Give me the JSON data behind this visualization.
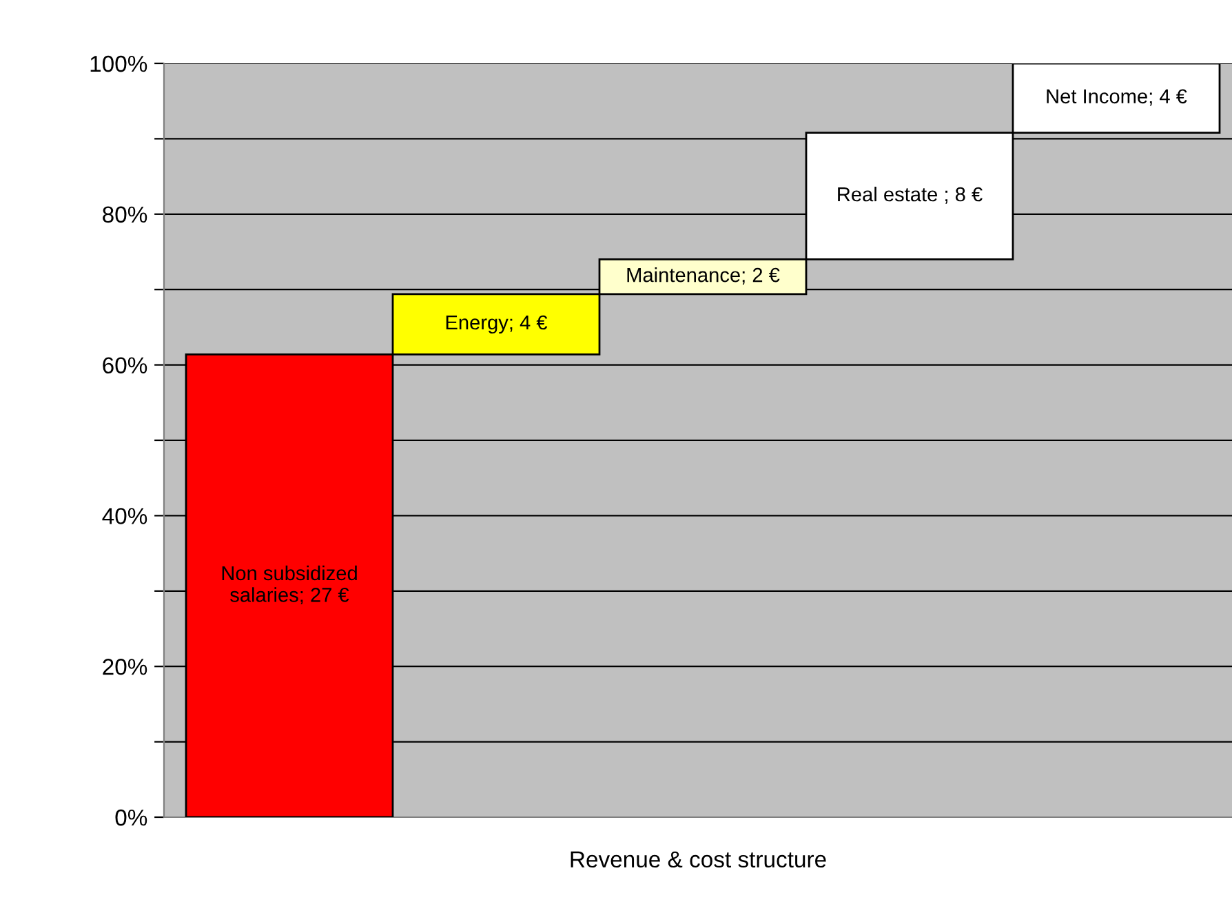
{
  "chart_data": {
    "type": "bar",
    "xlabel": "Revenue & cost structure",
    "categories": [
      null,
      null,
      null,
      null,
      null
    ],
    "values": [
      61.4,
      8.0,
      4.6,
      16.8,
      9.2
    ],
    "base": [
      0,
      61.4,
      69.4,
      74.0,
      90.8
    ],
    "colors": [
      "#ff0000",
      "#ffff00",
      "#ffffcc",
      "#ffffff",
      "#ffffff"
    ],
    "annotations": [
      "Non subsidized\nsalaries; 27 €",
      "Energy; 4 €",
      "Maintenance; 2 €",
      "Real estate ; 8 €",
      "Net Income; 4 €"
    ],
    "ylim": [
      0,
      100
    ],
    "yticks": [
      {
        "value": 0,
        "label": "0%"
      },
      {
        "value": 10,
        "label": null
      },
      {
        "value": 20,
        "label": "20%"
      },
      {
        "value": 30,
        "label": null
      },
      {
        "value": 40,
        "label": "40%"
      },
      {
        "value": 50,
        "label": null
      },
      {
        "value": 60,
        "label": "60%"
      },
      {
        "value": 70,
        "label": null
      },
      {
        "value": 80,
        "label": "80%"
      },
      {
        "value": 90,
        "label": null
      },
      {
        "value": 100,
        "label": "100%"
      }
    ],
    "grid": "y",
    "legend": false
  }
}
